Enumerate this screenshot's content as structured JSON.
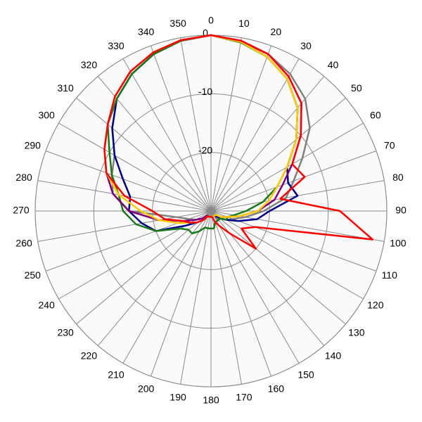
{
  "chart_data": {
    "type": "polar",
    "rlim": [
      -30,
      0
    ],
    "rticks": [
      -20,
      -10,
      0
    ],
    "theta": [
      0,
      10,
      20,
      30,
      40,
      50,
      60,
      70,
      80,
      90,
      100,
      110,
      120,
      130,
      140,
      150,
      160,
      170,
      180,
      190,
      200,
      210,
      220,
      230,
      240,
      250,
      260,
      270,
      280,
      290,
      300,
      310,
      320,
      330,
      340,
      350
    ],
    "thetaticks": [
      0,
      10,
      20,
      30,
      40,
      50,
      60,
      70,
      80,
      90,
      100,
      110,
      120,
      130,
      140,
      150,
      160,
      170,
      180,
      190,
      200,
      210,
      220,
      230,
      240,
      250,
      260,
      270,
      280,
      290,
      300,
      310,
      320,
      330,
      340,
      350
    ],
    "series": [
      {
        "color": "#808080",
        "values": [
          0,
          -0.5,
          -1.5,
          -3,
          -5,
          -8,
          -12,
          -15,
          -17,
          -21,
          -24,
          -26,
          -27,
          -28,
          -28,
          -29,
          -29,
          -29,
          -29,
          -29,
          -29,
          -29,
          -28,
          -28,
          -27,
          -26,
          -24,
          -16,
          -13,
          -12,
          -11,
          -8,
          -5,
          -3,
          -1.5,
          -0.5
        ]
      },
      {
        "color": "#00008b",
        "values": [
          0,
          -0.7,
          -2,
          -4,
          -7,
          -11,
          -15,
          -16,
          -15,
          -20,
          -22,
          -25,
          -27,
          -28,
          -29,
          -29,
          -29,
          -29,
          -29,
          -29,
          -29,
          -29,
          -28,
          -27,
          -25,
          -20,
          -18,
          -16,
          -16,
          -14,
          -11,
          -8,
          -5,
          -3,
          -1.5,
          -0.5
        ]
      },
      {
        "color": "#1a7a1a",
        "values": [
          0,
          -0.8,
          -2,
          -4,
          -7,
          -11,
          -15,
          -18,
          -21,
          -24,
          -26,
          -27,
          -27,
          -28,
          -28,
          -28,
          -28,
          -27,
          -27,
          -27,
          -27,
          -26,
          -25,
          -25,
          -24,
          -20,
          -17,
          -15,
          -14,
          -12,
          -10,
          -7,
          -5,
          -3,
          -1.5,
          -0.5
        ]
      },
      {
        "color": "#800080",
        "values": [
          0,
          -0.6,
          -1.5,
          -3.5,
          -6,
          -10,
          -14,
          -17,
          -19,
          -22,
          -25,
          -27,
          -28,
          -29,
          -29,
          -29,
          -29,
          -29,
          -29,
          -29,
          -29,
          -29,
          -29,
          -28,
          -27,
          -25,
          -21,
          -16,
          -13,
          -11,
          -9,
          -7,
          -4.5,
          -2.5,
          -1.2,
          -0.4
        ]
      },
      {
        "color": "#ffcc00",
        "values": [
          0,
          -0.7,
          -2,
          -4,
          -7,
          -11,
          -15,
          -18,
          -20,
          -22,
          -25,
          -27,
          -28,
          -29,
          -29,
          -29,
          -29,
          -29,
          -29,
          -29,
          -29,
          -29,
          -28,
          -27,
          -26,
          -24,
          -21,
          -18,
          -14,
          -11,
          -9,
          -7,
          -4.5,
          -2.5,
          -1.2,
          -0.4
        ]
      },
      {
        "color": "#ff0000",
        "values": [
          0,
          -0.5,
          -1.5,
          -3.5,
          -6,
          -10,
          -14,
          -13,
          -18,
          -8,
          -2,
          -22,
          -24,
          -20,
          -25,
          -27,
          -28,
          -29,
          -29,
          -29,
          -29,
          -29,
          -28,
          -27,
          -26,
          -25,
          -22,
          -20,
          -15,
          -11,
          -9,
          -7,
          -4.5,
          -2.5,
          -1.2,
          -0.4
        ]
      }
    ]
  }
}
